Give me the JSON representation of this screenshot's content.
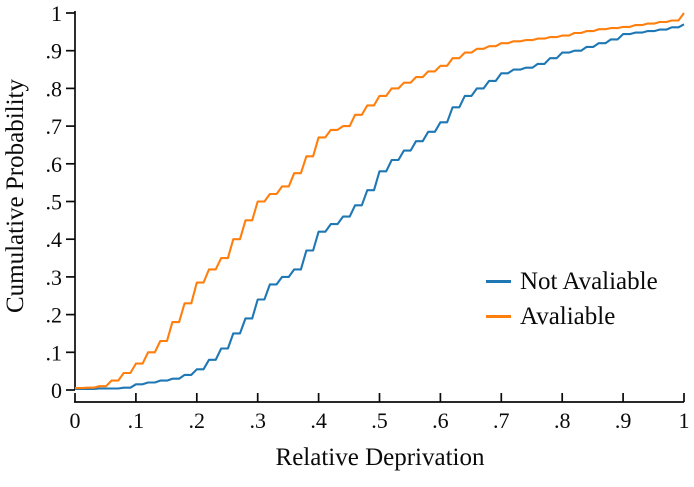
{
  "chart_data": {
    "type": "line",
    "subtype": "ecdf-step",
    "title": "",
    "xlabel": "Relative Deprivation",
    "ylabel": "Cumulative Probability",
    "xlim": [
      0,
      1
    ],
    "ylim": [
      0,
      1
    ],
    "grid": false,
    "axis_color": "#0a0a0a",
    "x_ticks": {
      "values": [
        0,
        0.1,
        0.2,
        0.3,
        0.4,
        0.5,
        0.6,
        0.7,
        0.8,
        0.9,
        1
      ],
      "labels": [
        "0",
        ".1",
        ".2",
        ".3",
        ".4",
        ".5",
        ".6",
        ".7",
        ".8",
        ".9",
        "1"
      ]
    },
    "y_ticks": {
      "values": [
        0,
        0.1,
        0.2,
        0.3,
        0.4,
        0.5,
        0.6,
        0.7,
        0.8,
        0.9,
        1
      ],
      "labels": [
        "0",
        ".1",
        ".2",
        ".3",
        ".4",
        ".5",
        ".6",
        ".7",
        ".8",
        ".9",
        "1"
      ]
    },
    "legend": {
      "position": "lower right",
      "entries": [
        {
          "label": "Not Avaliable",
          "color": "#1f77b4"
        },
        {
          "label": "Avaliable",
          "color": "#ff7f0e"
        }
      ]
    },
    "series": [
      {
        "name": "Not Avaliable",
        "color": "#1f77b4",
        "x": [
          0,
          0.02,
          0.04,
          0.06,
          0.08,
          0.1,
          0.12,
          0.14,
          0.16,
          0.18,
          0.2,
          0.22,
          0.24,
          0.26,
          0.28,
          0.3,
          0.32,
          0.34,
          0.36,
          0.38,
          0.4,
          0.42,
          0.44,
          0.46,
          0.48,
          0.5,
          0.52,
          0.54,
          0.56,
          0.58,
          0.6,
          0.62,
          0.64,
          0.66,
          0.68,
          0.7,
          0.72,
          0.74,
          0.76,
          0.78,
          0.8,
          0.82,
          0.84,
          0.86,
          0.88,
          0.9,
          0.92,
          0.94,
          0.96,
          0.98,
          1
        ],
        "y": [
          0.003,
          0.003,
          0.004,
          0.004,
          0.006,
          0.015,
          0.02,
          0.025,
          0.03,
          0.04,
          0.055,
          0.08,
          0.11,
          0.15,
          0.19,
          0.24,
          0.28,
          0.3,
          0.32,
          0.37,
          0.42,
          0.44,
          0.46,
          0.49,
          0.53,
          0.58,
          0.61,
          0.635,
          0.66,
          0.685,
          0.71,
          0.75,
          0.78,
          0.8,
          0.82,
          0.84,
          0.85,
          0.855,
          0.865,
          0.88,
          0.895,
          0.9,
          0.91,
          0.92,
          0.93,
          0.944,
          0.948,
          0.952,
          0.956,
          0.962,
          0.97
        ]
      },
      {
        "name": "Avaliable",
        "color": "#ff7f0e",
        "x": [
          0,
          0.02,
          0.04,
          0.06,
          0.08,
          0.1,
          0.12,
          0.14,
          0.16,
          0.18,
          0.2,
          0.22,
          0.24,
          0.26,
          0.28,
          0.3,
          0.32,
          0.34,
          0.36,
          0.38,
          0.4,
          0.42,
          0.44,
          0.46,
          0.48,
          0.5,
          0.52,
          0.54,
          0.56,
          0.58,
          0.6,
          0.62,
          0.64,
          0.66,
          0.68,
          0.7,
          0.72,
          0.74,
          0.76,
          0.78,
          0.8,
          0.82,
          0.84,
          0.86,
          0.88,
          0.9,
          0.92,
          0.94,
          0.96,
          0.98,
          1
        ],
        "y": [
          0.005,
          0.006,
          0.01,
          0.025,
          0.045,
          0.07,
          0.1,
          0.13,
          0.18,
          0.23,
          0.285,
          0.32,
          0.35,
          0.4,
          0.45,
          0.5,
          0.52,
          0.54,
          0.575,
          0.62,
          0.67,
          0.69,
          0.7,
          0.73,
          0.755,
          0.78,
          0.8,
          0.815,
          0.83,
          0.845,
          0.86,
          0.88,
          0.895,
          0.905,
          0.912,
          0.92,
          0.925,
          0.928,
          0.932,
          0.936,
          0.94,
          0.947,
          0.952,
          0.957,
          0.96,
          0.963,
          0.968,
          0.972,
          0.976,
          0.98,
          1.0
        ]
      }
    ]
  }
}
